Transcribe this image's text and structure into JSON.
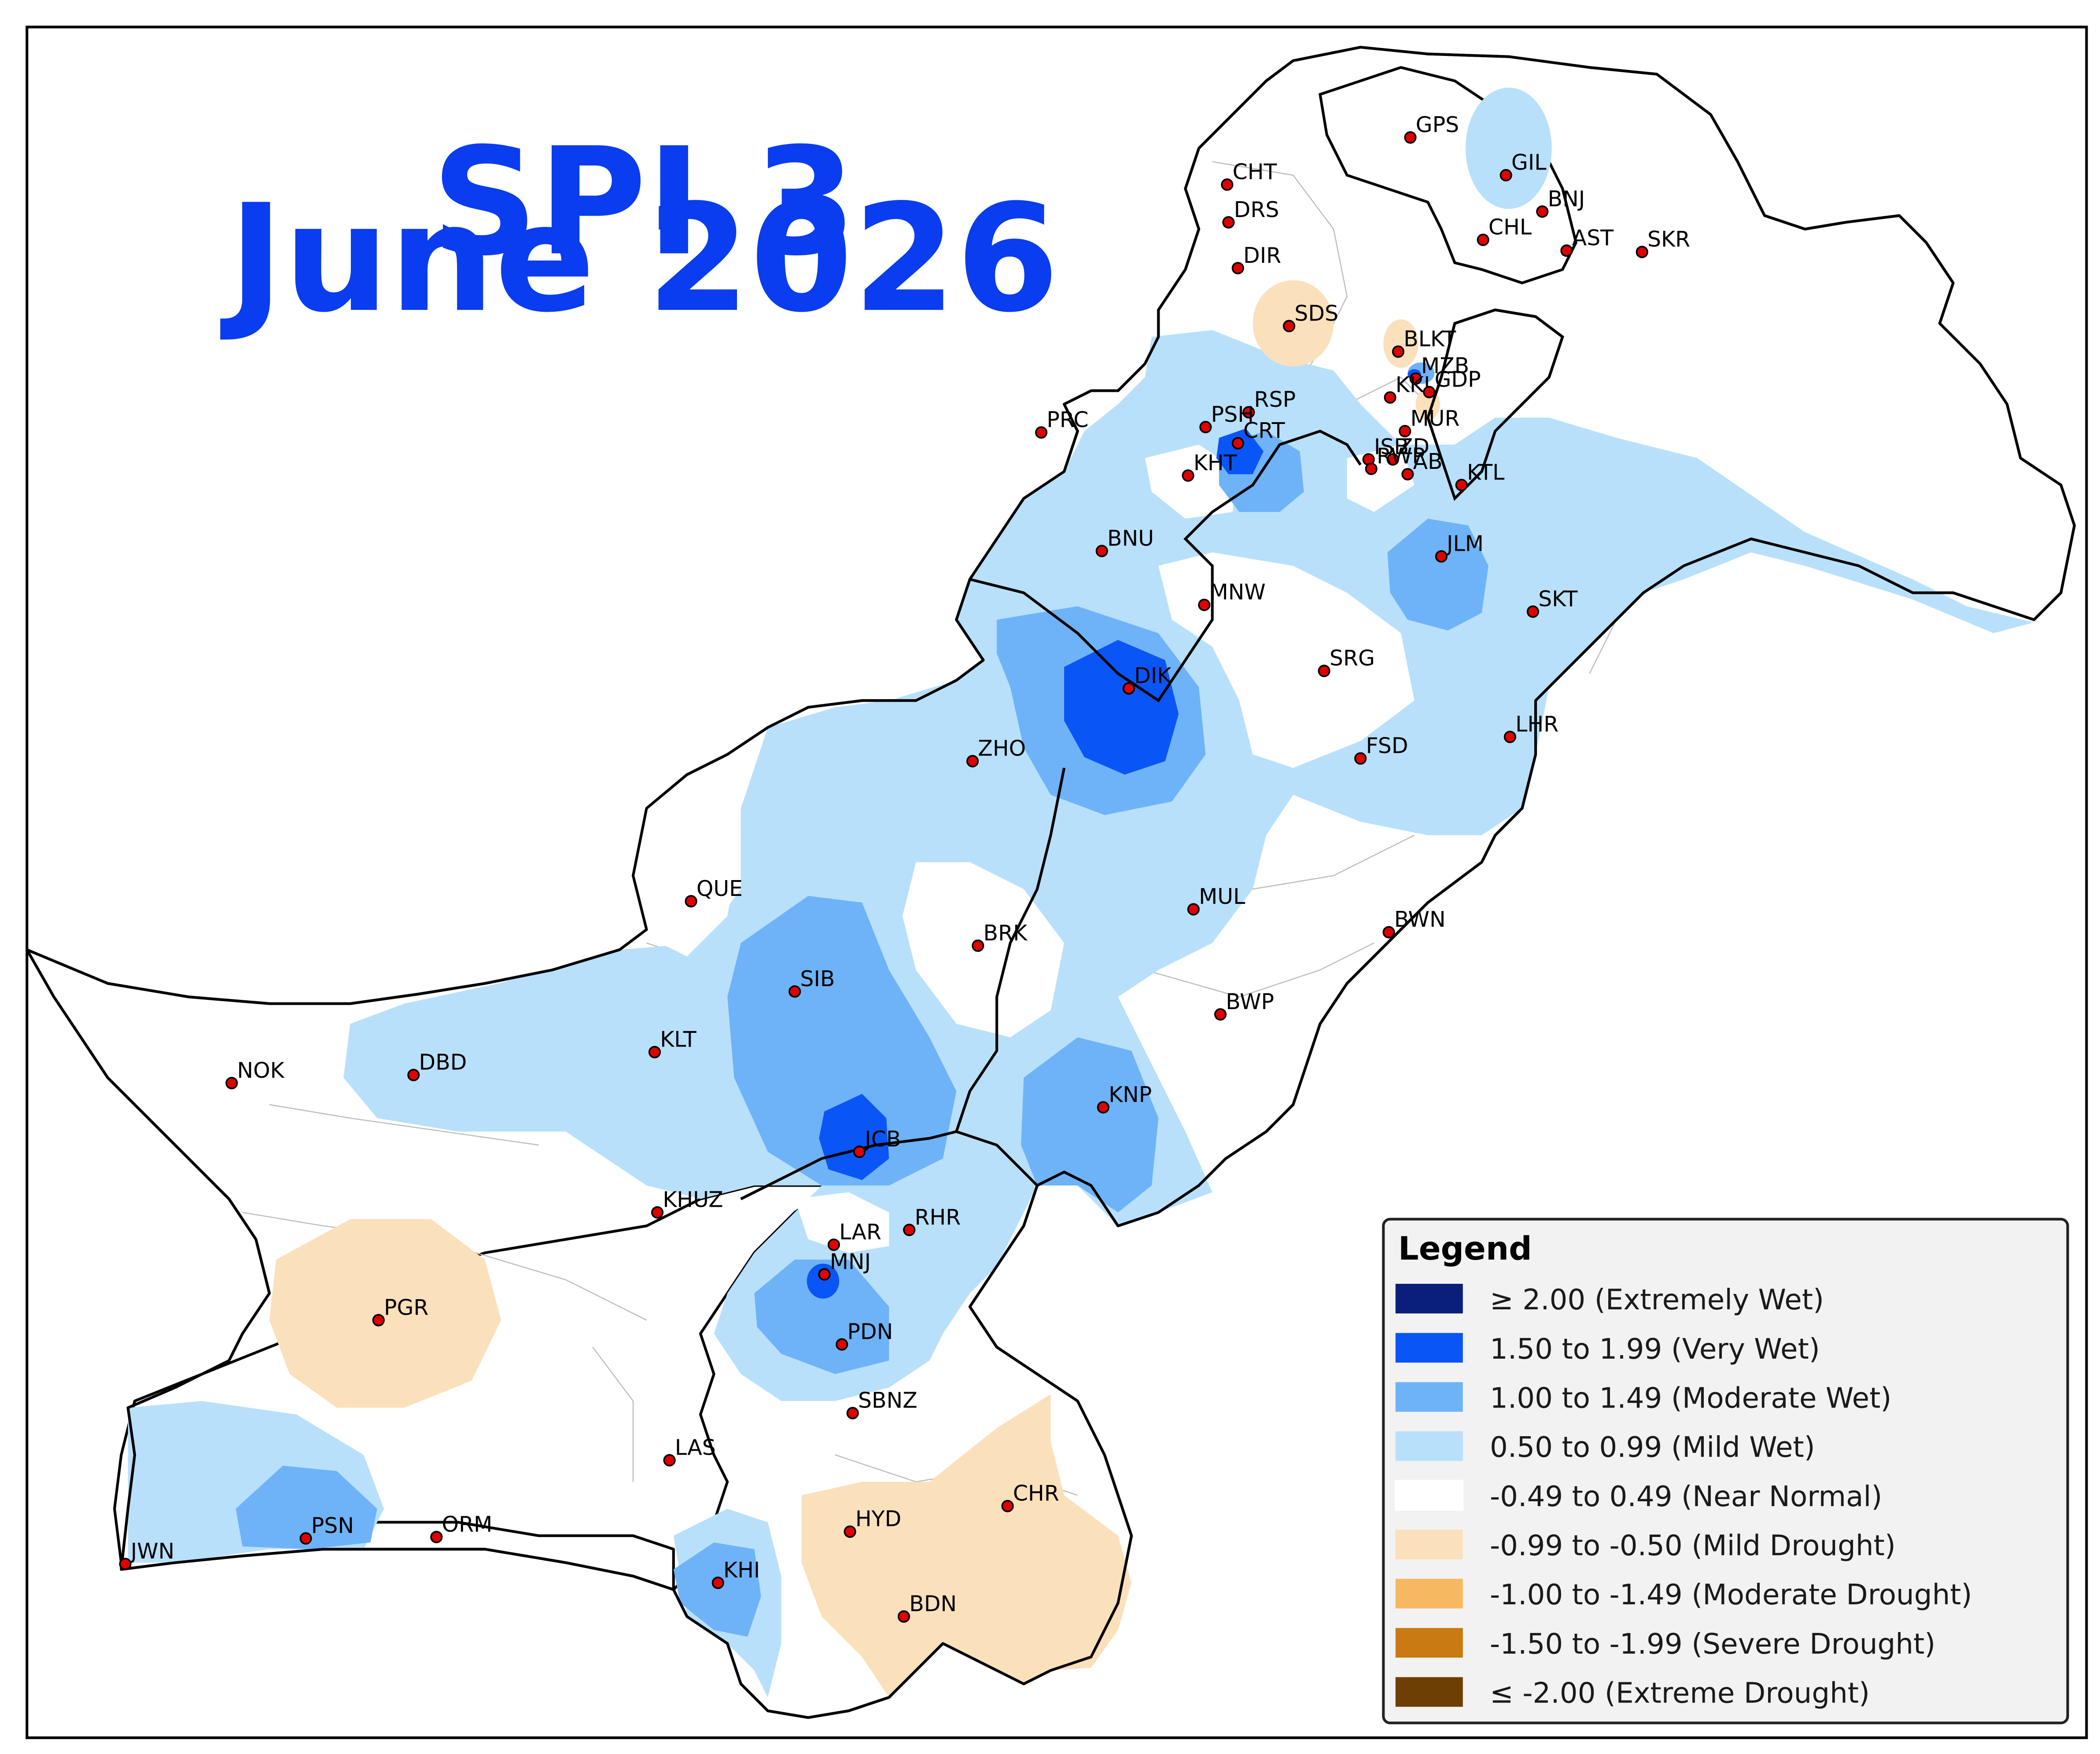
{
  "title": {
    "line1": "SPI 3",
    "line2": "June 2026"
  },
  "colors": {
    "extremely_wet": "#0a1f7a",
    "very_wet": "#0a55f5",
    "moderate_wet": "#6eb3f7",
    "mild_wet": "#b8e0fb",
    "near_normal": "#ffffff",
    "mild_drought": "#fbe0bc",
    "moderate_drought": "#f6b962",
    "severe_drought": "#c97a12",
    "extreme_drought": "#6d3f05",
    "title": "#0a3cf0",
    "station": "#e00000"
  },
  "legend": {
    "title": "Legend",
    "items": [
      {
        "label": "≥ 2.00 (Extremely Wet)",
        "color": "#0a1f7a"
      },
      {
        "label": "1.50 to 1.99 (Very Wet)",
        "color": "#0a55f5"
      },
      {
        "label": "1.00 to 1.49 (Moderate Wet)",
        "color": "#6eb3f7"
      },
      {
        "label": "0.50 to 0.99 (Mild Wet)",
        "color": "#b8e0fb"
      },
      {
        "label": "-0.49 to 0.49 (Near Normal)",
        "color": "#ffffff"
      },
      {
        "label": "-0.99 to -0.50 (Mild Drought)",
        "color": "#fbe0bc"
      },
      {
        "label": "-1.00 to -1.49 (Moderate Drought)",
        "color": "#f6b962"
      },
      {
        "label": "-1.50 to -1.99 (Severe Drought)",
        "color": "#c97a12"
      },
      {
        "label": "≤ -2.00 (Extreme Drought)",
        "color": "#6d3f05"
      }
    ]
  },
  "stations": [
    "GPS",
    "GIL",
    "CHT",
    "BNJ",
    "DRS",
    "CHL",
    "AST",
    "SKR",
    "DIR",
    "SDS",
    "BLKT",
    "MZB",
    "RSP",
    "KKI",
    "GDP",
    "PRC",
    "PSH",
    "MUR",
    "CRT",
    "ISB",
    "ZD",
    "KHT",
    "RWP",
    "AB",
    "KTL",
    "BNU",
    "JLM",
    "MNW",
    "SKT",
    "SRG",
    "DIK",
    "LHR",
    "FSD",
    "ZHO",
    "QUE",
    "MUL",
    "BRK",
    "BWN",
    "SIB",
    "BWP",
    "KLT",
    "NOK",
    "DBD",
    "KNP",
    "JCB",
    "KHUZ",
    "RHR",
    "LAR",
    "MNJ",
    "PGR",
    "PDN",
    "SBNZ",
    "LAS",
    "CHR",
    "HYD",
    "PSN",
    "ORM",
    "JWN",
    "KHI",
    "BDN"
  ]
}
